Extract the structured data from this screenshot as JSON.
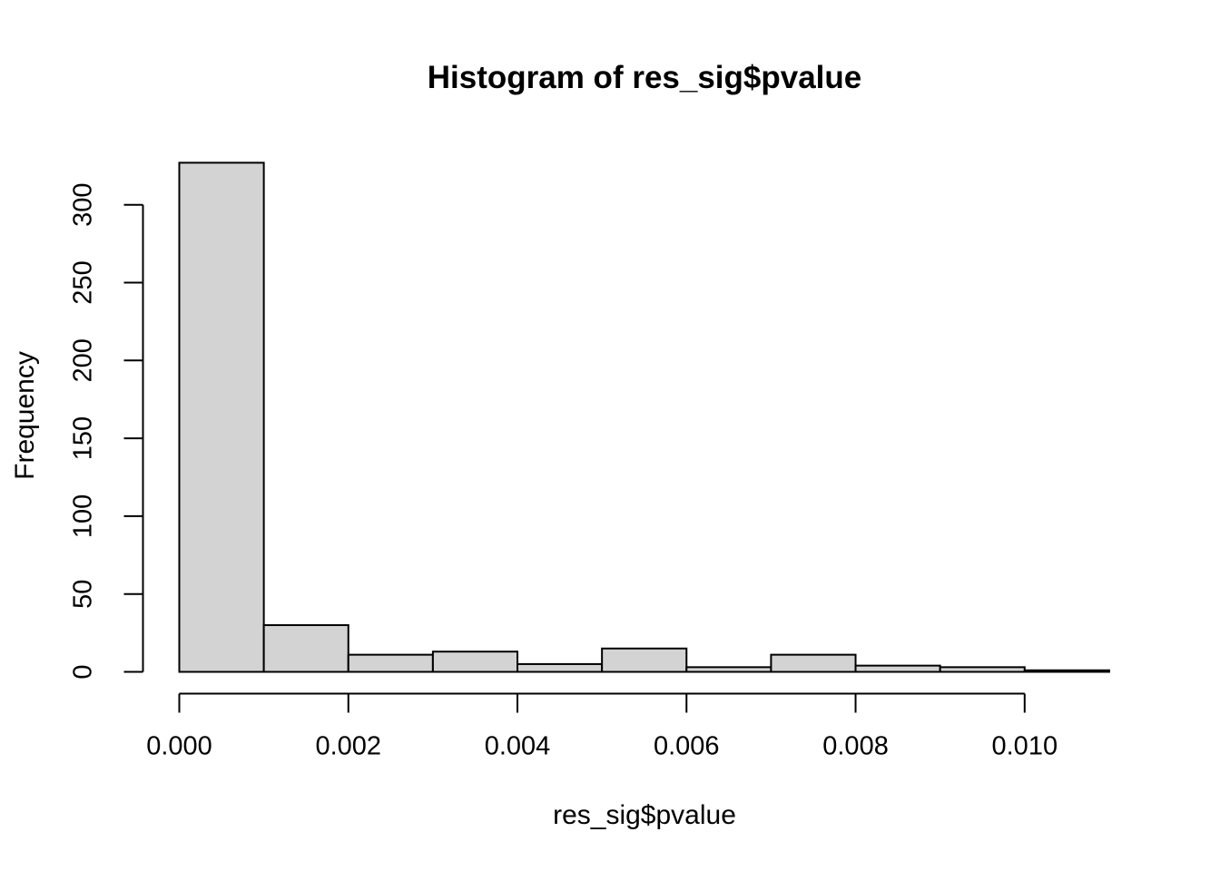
{
  "chart_data": {
    "type": "bar",
    "chart_kind": "histogram",
    "title": "Histogram of res_sig$pvalue",
    "xlabel": "res_sig$pvalue",
    "ylabel": "Frequency",
    "bin_start": 0,
    "bin_width": 0.001,
    "bin_edges": [
      0.0,
      0.001,
      0.002,
      0.003,
      0.004,
      0.005,
      0.006,
      0.007,
      0.008,
      0.009,
      0.01,
      0.011
    ],
    "frequencies": [
      327,
      30,
      11,
      13,
      5,
      15,
      3,
      11,
      4,
      3,
      1
    ],
    "x_ticks": {
      "values": [
        0,
        0.002,
        0.004,
        0.006,
        0.008,
        0.01
      ],
      "labels": [
        "0.000",
        "0.002",
        "0.004",
        "0.006",
        "0.008",
        "0.010"
      ]
    },
    "y_ticks": {
      "values": [
        0,
        50,
        100,
        150,
        200,
        250,
        300
      ],
      "labels": [
        "0",
        "50",
        "100",
        "150",
        "200",
        "250",
        "300"
      ]
    },
    "xlim": [
      0,
      0.011
    ],
    "ylim": [
      0,
      327
    ],
    "grid": false,
    "legend": "none",
    "colors": {
      "bar_fill": "#d3d3d3",
      "bar_stroke": "#000000",
      "axis": "#000000",
      "text": "#000000",
      "background": "#ffffff"
    }
  }
}
